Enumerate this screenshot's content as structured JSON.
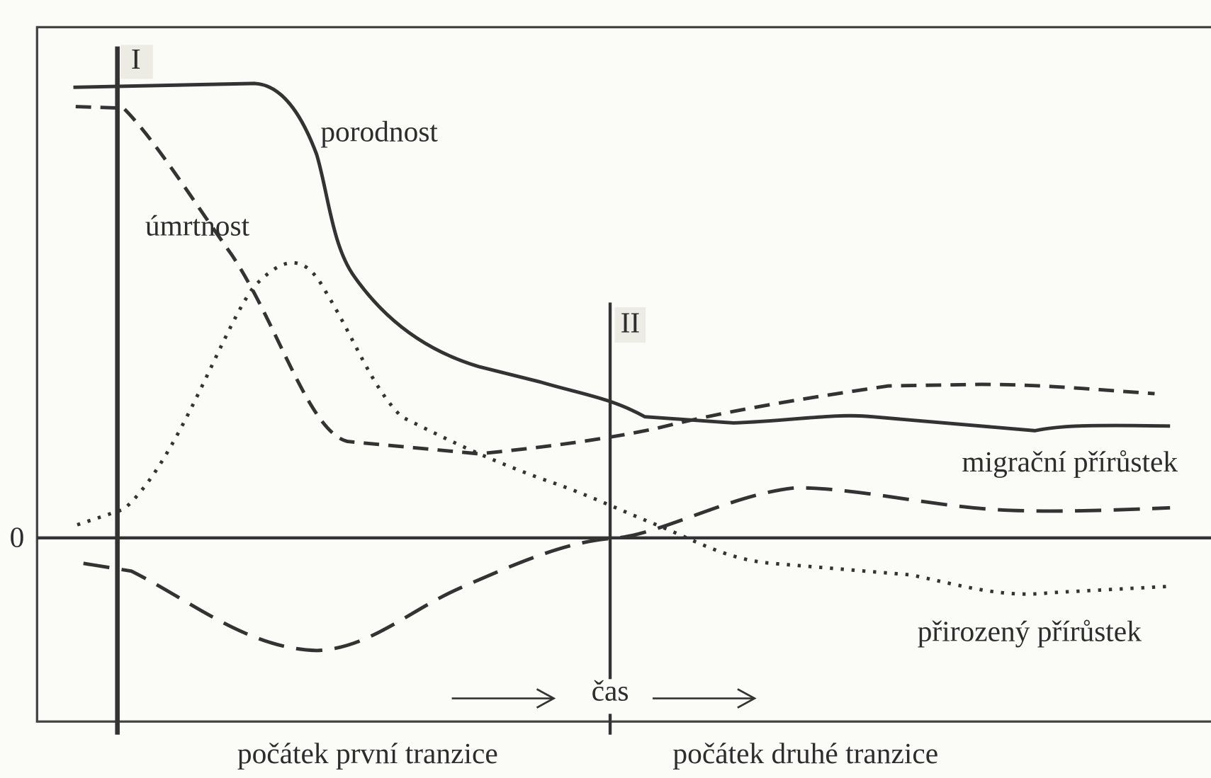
{
  "markers": {
    "first": "I",
    "second": "II"
  },
  "curves": {
    "birth_rate": "porodnost",
    "death_rate": "úmrtnost",
    "migration_increase": "migrační přírůstek",
    "natural_increase": "přirozený přírůstek"
  },
  "axis": {
    "zero": "0",
    "time": "čas"
  },
  "footer": {
    "first_transition": "počátek první tranzice",
    "second_transition": "počátek druhé tranzice"
  }
}
